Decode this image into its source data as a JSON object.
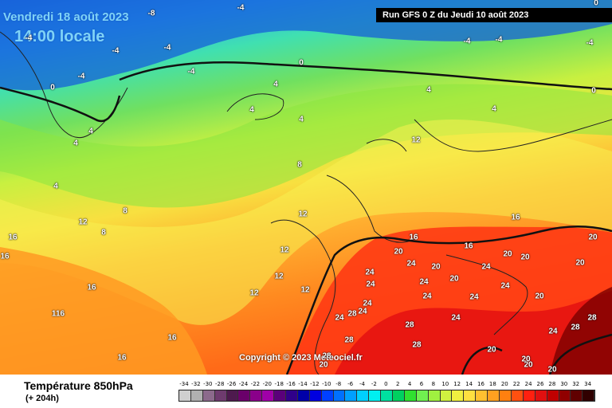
{
  "title": {
    "date": "Vendredi 18 août 2023",
    "time": "14:00 locale"
  },
  "run": {
    "label": "Run GFS 0 Z du Jeudi 10 août 2023"
  },
  "copyright": "Copyright © 2023 Meteociel.fr",
  "footer": {
    "field": "Température 850hPa",
    "step": "(+ 204h)"
  },
  "legend": {
    "values": [
      "-34",
      "-32",
      "-30",
      "-28",
      "-26",
      "-24",
      "-22",
      "-20",
      "-18",
      "-16",
      "-14",
      "-12",
      "-10",
      "-8",
      "-6",
      "-4",
      "-2",
      "0",
      "2",
      "4",
      "6",
      "8",
      "10",
      "12",
      "14",
      "16",
      "18",
      "20",
      "22",
      "24",
      "26",
      "28",
      "30",
      "32",
      "34"
    ],
    "colors": [
      "#cfcfcf",
      "#b0b0b0",
      "#8c6a8c",
      "#6e3b6e",
      "#4e1a4e",
      "#6a006a",
      "#8a008a",
      "#a000a8",
      "#5a007a",
      "#30008a",
      "#0000a8",
      "#0000e0",
      "#0040ff",
      "#0070ff",
      "#00a0ff",
      "#00d0ff",
      "#00f0f0",
      "#00e0a0",
      "#00d060",
      "#30e030",
      "#70f050",
      "#a0f040",
      "#d0f040",
      "#f0f040",
      "#ffe040",
      "#ffc030",
      "#ffa020",
      "#ff8010",
      "#ff5010",
      "#ff2010",
      "#e01010",
      "#c00000",
      "#900000",
      "#600000",
      "#300000"
    ]
  },
  "map_labels": [
    "-8",
    "-4",
    "-4",
    "-4",
    "-4",
    "-4",
    "-4",
    "-4",
    "-4",
    "-4",
    "0",
    "0",
    "0",
    "0",
    "4",
    "4",
    "4",
    "4",
    "4",
    "4",
    "4",
    "4",
    "8",
    "8",
    "8",
    "12",
    "12",
    "12",
    "12",
    "12",
    "12",
    "12",
    "16",
    "16",
    "16",
    "16",
    "16",
    "16",
    "16",
    "16",
    "116",
    "20",
    "20",
    "20",
    "20",
    "20",
    "20",
    "20",
    "20",
    "20",
    "20",
    "20",
    "20",
    "20",
    "24",
    "24",
    "24",
    "24",
    "24",
    "24",
    "24",
    "24",
    "24",
    "24",
    "24",
    "24",
    "24",
    "28",
    "28",
    "28",
    "28",
    "28",
    "28",
    "28"
  ]
}
